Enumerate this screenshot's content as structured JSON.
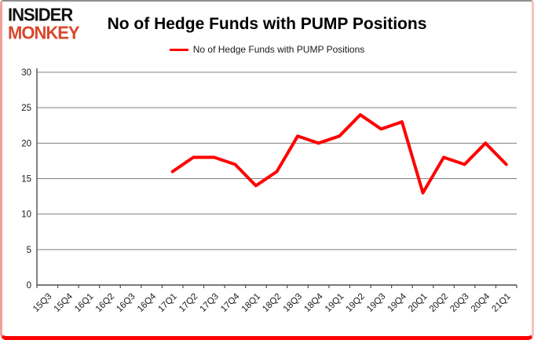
{
  "logo": {
    "line1": "INSIDER",
    "line2": "MONKEY",
    "line1_color": "#121212",
    "line2_color": "#d8472c"
  },
  "title": "No of Hedge Funds with PUMP Positions",
  "legend": {
    "label": "No of Hedge Funds with PUMP Positions",
    "line_color": "#fe0000"
  },
  "chart_data": {
    "type": "line",
    "title": "No of Hedge Funds with PUMP Positions",
    "categories": [
      "15Q3",
      "15Q4",
      "16Q1",
      "16Q2",
      "16Q3",
      "16Q4",
      "17Q1",
      "17Q2",
      "17Q3",
      "17Q4",
      "18Q1",
      "18Q2",
      "18Q3",
      "18Q4",
      "19Q1",
      "19Q2",
      "19Q3",
      "19Q4",
      "20Q1",
      "20Q2",
      "20Q3",
      "20Q4",
      "21Q1"
    ],
    "series": [
      {
        "name": "No of Hedge Funds with PUMP Positions",
        "color": "#fe0000",
        "values": [
          null,
          null,
          null,
          null,
          null,
          null,
          16,
          18,
          18,
          17,
          14,
          16,
          21,
          20,
          21,
          24,
          22,
          23,
          13,
          18,
          17,
          20,
          17
        ]
      }
    ],
    "xlabel": "",
    "ylabel": "",
    "ylim": [
      0,
      30
    ],
    "yticks": [
      0,
      5,
      10,
      15,
      20,
      25,
      30
    ],
    "grid": true,
    "gridline_color": "#808080",
    "axis_color": "#4d4d4d",
    "tick_label_color": "#1a1a1a",
    "legend_position": "top"
  }
}
